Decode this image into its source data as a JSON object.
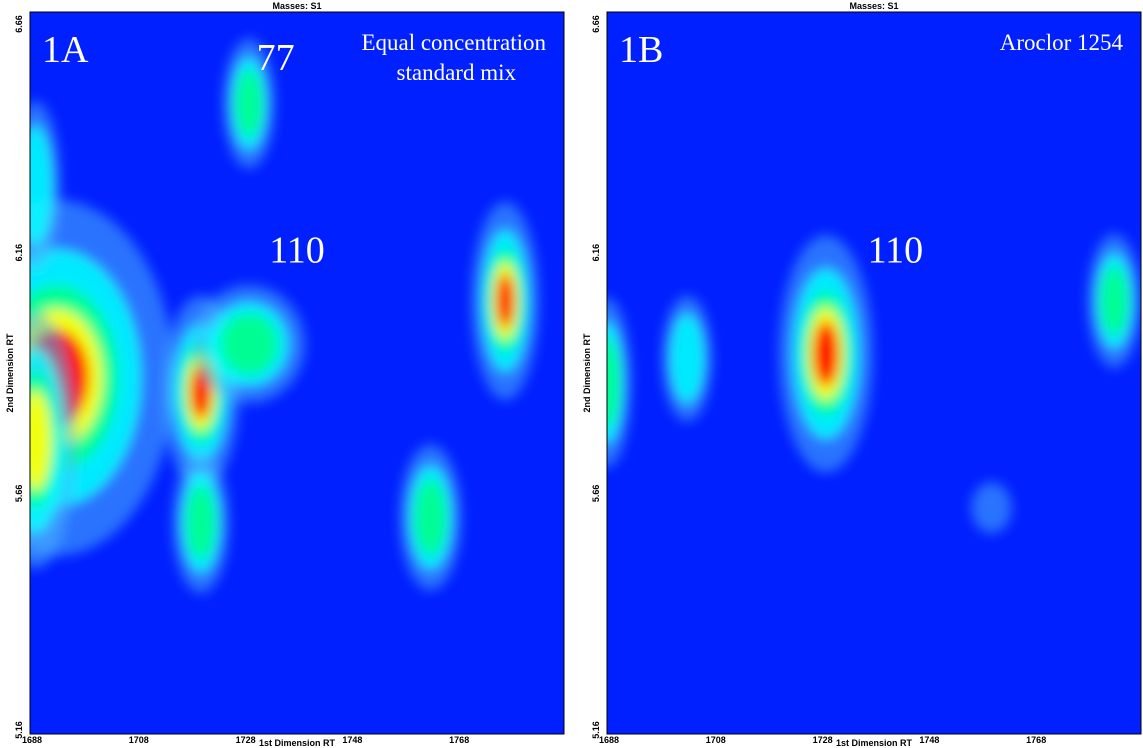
{
  "colors": {
    "background": "#0020ff",
    "low": "#00ffff",
    "mid": "#ffff00",
    "high": "#ff0000"
  },
  "chart_data": [
    {
      "type": "heatmap",
      "panel_id": "1A",
      "caption_lines": [
        "Equal concentration",
        "standard mix"
      ],
      "masses_label": "Masses: S1",
      "xlabel": "1st Dimension RT",
      "ylabel": "2nd Dimension RT",
      "x_ticks": [
        "1688",
        "1708",
        "1728",
        "1748",
        "1768"
      ],
      "y_ticks": [
        "6.66",
        "6.16",
        "5.66",
        "5.16"
      ],
      "xlim": [
        1688,
        1788
      ],
      "ylim": [
        5.16,
        6.66
      ],
      "peak_labels": [
        {
          "text": "77",
          "x": 1734,
          "y": 6.54
        },
        {
          "text": "110",
          "x": 1738,
          "y": 6.14
        }
      ],
      "peaks": [
        {
          "x": 1693,
          "y": 5.9,
          "intensity": 1.0,
          "sx": 10,
          "sy": 0.12
        },
        {
          "x": 1689,
          "y": 5.77,
          "intensity": 0.7,
          "sx": 4,
          "sy": 0.1
        },
        {
          "x": 1689,
          "y": 6.3,
          "intensity": 0.35,
          "sx": 3,
          "sy": 0.08
        },
        {
          "x": 1720,
          "y": 5.87,
          "intensity": 0.85,
          "sx": 3.5,
          "sy": 0.07
        },
        {
          "x": 1729,
          "y": 5.97,
          "intensity": 0.55,
          "sx": 6,
          "sy": 0.05
        },
        {
          "x": 1720,
          "y": 5.6,
          "intensity": 0.55,
          "sx": 3,
          "sy": 0.06
        },
        {
          "x": 1729,
          "y": 6.47,
          "intensity": 0.4,
          "sx": 3,
          "sy": 0.06
        },
        {
          "x": 1763,
          "y": 5.61,
          "intensity": 0.6,
          "sx": 3.2,
          "sy": 0.06
        },
        {
          "x": 1777,
          "y": 6.06,
          "intensity": 0.9,
          "sx": 3,
          "sy": 0.07
        }
      ]
    },
    {
      "type": "heatmap",
      "panel_id": "1B",
      "caption_lines": [
        "Aroclor 1254"
      ],
      "masses_label": "Masses: S1",
      "xlabel": "1st Dimension RT",
      "ylabel": "2nd Dimension RT",
      "x_ticks": [
        "1688",
        "1708",
        "1728",
        "1748",
        "1768"
      ],
      "y_ticks": [
        "6.66",
        "6.16",
        "5.66",
        "5.16"
      ],
      "xlim": [
        1688,
        1788
      ],
      "ylim": [
        5.16,
        6.66
      ],
      "peak_labels": [
        {
          "text": "110",
          "x": 1742,
          "y": 6.14
        }
      ],
      "peaks": [
        {
          "x": 1729,
          "y": 5.95,
          "intensity": 1.0,
          "sx": 4,
          "sy": 0.08
        },
        {
          "x": 1688,
          "y": 5.89,
          "intensity": 0.6,
          "sx": 2.5,
          "sy": 0.07
        },
        {
          "x": 1703,
          "y": 5.94,
          "intensity": 0.35,
          "sx": 3,
          "sy": 0.06
        },
        {
          "x": 1783,
          "y": 6.06,
          "intensity": 0.45,
          "sx": 3,
          "sy": 0.06
        },
        {
          "x": 1760,
          "y": 5.63,
          "intensity": 0.05,
          "sx": 3,
          "sy": 0.03
        }
      ]
    }
  ]
}
